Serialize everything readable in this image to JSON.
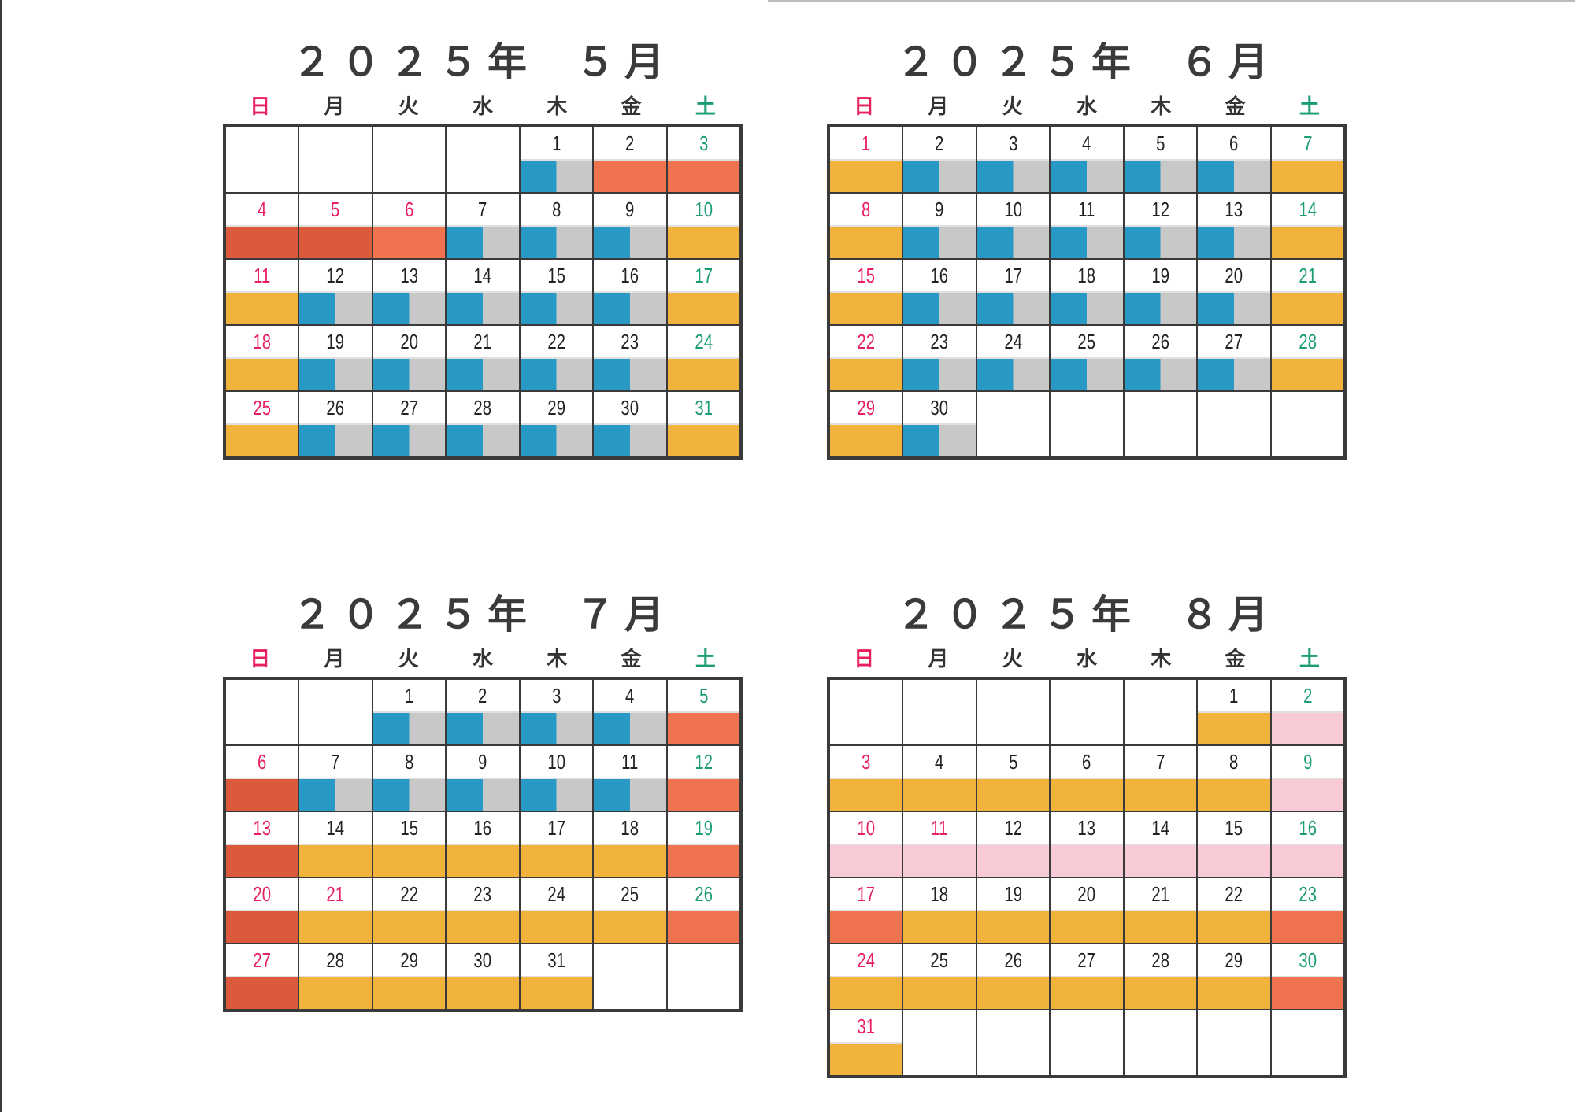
{
  "weekday_labels": [
    "日",
    "月",
    "火",
    "水",
    "木",
    "金",
    "土"
  ],
  "calendars": [
    {
      "year_label": "２０２５年",
      "month_label": "５月",
      "cells": [
        {
          "d": "",
          "c": "k",
          "b": "n"
        },
        {
          "d": "",
          "c": "k",
          "b": "n"
        },
        {
          "d": "",
          "c": "k",
          "b": "n"
        },
        {
          "d": "",
          "c": "k",
          "b": "n"
        },
        {
          "d": "1",
          "c": "k",
          "b": "t"
        },
        {
          "d": "2",
          "c": "k",
          "b": "r"
        },
        {
          "d": "3",
          "c": "g",
          "b": "r"
        },
        {
          "d": "4",
          "c": "r",
          "b": "dr"
        },
        {
          "d": "5",
          "c": "r",
          "b": "dr"
        },
        {
          "d": "6",
          "c": "r",
          "b": "r"
        },
        {
          "d": "7",
          "c": "k",
          "b": "t"
        },
        {
          "d": "8",
          "c": "k",
          "b": "t"
        },
        {
          "d": "9",
          "c": "k",
          "b": "t"
        },
        {
          "d": "10",
          "c": "g",
          "b": "o"
        },
        {
          "d": "11",
          "c": "r",
          "b": "o"
        },
        {
          "d": "12",
          "c": "k",
          "b": "t"
        },
        {
          "d": "13",
          "c": "k",
          "b": "t"
        },
        {
          "d": "14",
          "c": "k",
          "b": "t"
        },
        {
          "d": "15",
          "c": "k",
          "b": "t"
        },
        {
          "d": "16",
          "c": "k",
          "b": "t"
        },
        {
          "d": "17",
          "c": "g",
          "b": "o"
        },
        {
          "d": "18",
          "c": "r",
          "b": "o"
        },
        {
          "d": "19",
          "c": "k",
          "b": "t"
        },
        {
          "d": "20",
          "c": "k",
          "b": "t"
        },
        {
          "d": "21",
          "c": "k",
          "b": "t"
        },
        {
          "d": "22",
          "c": "k",
          "b": "t"
        },
        {
          "d": "23",
          "c": "k",
          "b": "t"
        },
        {
          "d": "24",
          "c": "g",
          "b": "o"
        },
        {
          "d": "25",
          "c": "r",
          "b": "o"
        },
        {
          "d": "26",
          "c": "k",
          "b": "t"
        },
        {
          "d": "27",
          "c": "k",
          "b": "t"
        },
        {
          "d": "28",
          "c": "k",
          "b": "t"
        },
        {
          "d": "29",
          "c": "k",
          "b": "t"
        },
        {
          "d": "30",
          "c": "k",
          "b": "t"
        },
        {
          "d": "31",
          "c": "g",
          "b": "o"
        }
      ]
    },
    {
      "year_label": "２０２５年",
      "month_label": "６月",
      "cells": [
        {
          "d": "1",
          "c": "r",
          "b": "o"
        },
        {
          "d": "2",
          "c": "k",
          "b": "t"
        },
        {
          "d": "3",
          "c": "k",
          "b": "t"
        },
        {
          "d": "4",
          "c": "k",
          "b": "t"
        },
        {
          "d": "5",
          "c": "k",
          "b": "t"
        },
        {
          "d": "6",
          "c": "k",
          "b": "t"
        },
        {
          "d": "7",
          "c": "g",
          "b": "o"
        },
        {
          "d": "8",
          "c": "r",
          "b": "o"
        },
        {
          "d": "9",
          "c": "k",
          "b": "t"
        },
        {
          "d": "10",
          "c": "k",
          "b": "t"
        },
        {
          "d": "11",
          "c": "k",
          "b": "t"
        },
        {
          "d": "12",
          "c": "k",
          "b": "t"
        },
        {
          "d": "13",
          "c": "k",
          "b": "t"
        },
        {
          "d": "14",
          "c": "g",
          "b": "o"
        },
        {
          "d": "15",
          "c": "r",
          "b": "o"
        },
        {
          "d": "16",
          "c": "k",
          "b": "t"
        },
        {
          "d": "17",
          "c": "k",
          "b": "t"
        },
        {
          "d": "18",
          "c": "k",
          "b": "t"
        },
        {
          "d": "19",
          "c": "k",
          "b": "t"
        },
        {
          "d": "20",
          "c": "k",
          "b": "t"
        },
        {
          "d": "21",
          "c": "g",
          "b": "o"
        },
        {
          "d": "22",
          "c": "r",
          "b": "o"
        },
        {
          "d": "23",
          "c": "k",
          "b": "t"
        },
        {
          "d": "24",
          "c": "k",
          "b": "t"
        },
        {
          "d": "25",
          "c": "k",
          "b": "t"
        },
        {
          "d": "26",
          "c": "k",
          "b": "t"
        },
        {
          "d": "27",
          "c": "k",
          "b": "t"
        },
        {
          "d": "28",
          "c": "g",
          "b": "o"
        },
        {
          "d": "29",
          "c": "r",
          "b": "o"
        },
        {
          "d": "30",
          "c": "k",
          "b": "t"
        },
        {
          "d": "",
          "c": "k",
          "b": "n"
        },
        {
          "d": "",
          "c": "k",
          "b": "n"
        },
        {
          "d": "",
          "c": "k",
          "b": "n"
        },
        {
          "d": "",
          "c": "k",
          "b": "n"
        },
        {
          "d": "",
          "c": "k",
          "b": "n"
        }
      ]
    },
    {
      "year_label": "２０２５年",
      "month_label": "７月",
      "cells": [
        {
          "d": "",
          "c": "k",
          "b": "n"
        },
        {
          "d": "",
          "c": "k",
          "b": "n"
        },
        {
          "d": "1",
          "c": "k",
          "b": "t"
        },
        {
          "d": "2",
          "c": "k",
          "b": "t"
        },
        {
          "d": "3",
          "c": "k",
          "b": "t"
        },
        {
          "d": "4",
          "c": "k",
          "b": "t"
        },
        {
          "d": "5",
          "c": "g",
          "b": "r"
        },
        {
          "d": "6",
          "c": "r",
          "b": "dr"
        },
        {
          "d": "7",
          "c": "k",
          "b": "t"
        },
        {
          "d": "8",
          "c": "k",
          "b": "t"
        },
        {
          "d": "9",
          "c": "k",
          "b": "t"
        },
        {
          "d": "10",
          "c": "k",
          "b": "t"
        },
        {
          "d": "11",
          "c": "k",
          "b": "t"
        },
        {
          "d": "12",
          "c": "g",
          "b": "r"
        },
        {
          "d": "13",
          "c": "r",
          "b": "dr"
        },
        {
          "d": "14",
          "c": "k",
          "b": "o"
        },
        {
          "d": "15",
          "c": "k",
          "b": "o"
        },
        {
          "d": "16",
          "c": "k",
          "b": "o"
        },
        {
          "d": "17",
          "c": "k",
          "b": "o"
        },
        {
          "d": "18",
          "c": "k",
          "b": "o"
        },
        {
          "d": "19",
          "c": "g",
          "b": "r"
        },
        {
          "d": "20",
          "c": "r",
          "b": "dr"
        },
        {
          "d": "21",
          "c": "r",
          "b": "o"
        },
        {
          "d": "22",
          "c": "k",
          "b": "o"
        },
        {
          "d": "23",
          "c": "k",
          "b": "o"
        },
        {
          "d": "24",
          "c": "k",
          "b": "o"
        },
        {
          "d": "25",
          "c": "k",
          "b": "o"
        },
        {
          "d": "26",
          "c": "g",
          "b": "r"
        },
        {
          "d": "27",
          "c": "r",
          "b": "dr"
        },
        {
          "d": "28",
          "c": "k",
          "b": "o"
        },
        {
          "d": "29",
          "c": "k",
          "b": "o"
        },
        {
          "d": "30",
          "c": "k",
          "b": "o"
        },
        {
          "d": "31",
          "c": "k",
          "b": "o"
        },
        {
          "d": "",
          "c": "k",
          "b": "n"
        },
        {
          "d": "",
          "c": "k",
          "b": "n"
        }
      ]
    },
    {
      "year_label": "２０２５年",
      "month_label": "８月",
      "cells": [
        {
          "d": "",
          "c": "k",
          "b": "n"
        },
        {
          "d": "",
          "c": "k",
          "b": "n"
        },
        {
          "d": "",
          "c": "k",
          "b": "n"
        },
        {
          "d": "",
          "c": "k",
          "b": "n"
        },
        {
          "d": "",
          "c": "k",
          "b": "n"
        },
        {
          "d": "1",
          "c": "k",
          "b": "o"
        },
        {
          "d": "2",
          "c": "g",
          "b": "p"
        },
        {
          "d": "3",
          "c": "r",
          "b": "o"
        },
        {
          "d": "4",
          "c": "k",
          "b": "o"
        },
        {
          "d": "5",
          "c": "k",
          "b": "o"
        },
        {
          "d": "6",
          "c": "k",
          "b": "o"
        },
        {
          "d": "7",
          "c": "k",
          "b": "o"
        },
        {
          "d": "8",
          "c": "k",
          "b": "o"
        },
        {
          "d": "9",
          "c": "g",
          "b": "p"
        },
        {
          "d": "10",
          "c": "r",
          "b": "p"
        },
        {
          "d": "11",
          "c": "r",
          "b": "p"
        },
        {
          "d": "12",
          "c": "k",
          "b": "p"
        },
        {
          "d": "13",
          "c": "k",
          "b": "p"
        },
        {
          "d": "14",
          "c": "k",
          "b": "p"
        },
        {
          "d": "15",
          "c": "k",
          "b": "p"
        },
        {
          "d": "16",
          "c": "g",
          "b": "p"
        },
        {
          "d": "17",
          "c": "r",
          "b": "r"
        },
        {
          "d": "18",
          "c": "k",
          "b": "o"
        },
        {
          "d": "19",
          "c": "k",
          "b": "o"
        },
        {
          "d": "20",
          "c": "k",
          "b": "o"
        },
        {
          "d": "21",
          "c": "k",
          "b": "o"
        },
        {
          "d": "22",
          "c": "k",
          "b": "o"
        },
        {
          "d": "23",
          "c": "g",
          "b": "r"
        },
        {
          "d": "24",
          "c": "r",
          "b": "o"
        },
        {
          "d": "25",
          "c": "k",
          "b": "o"
        },
        {
          "d": "26",
          "c": "k",
          "b": "o"
        },
        {
          "d": "27",
          "c": "k",
          "b": "o"
        },
        {
          "d": "28",
          "c": "k",
          "b": "o"
        },
        {
          "d": "29",
          "c": "k",
          "b": "o"
        },
        {
          "d": "30",
          "c": "g",
          "b": "r"
        },
        {
          "d": "31",
          "c": "r",
          "b": "o"
        },
        {
          "d": "",
          "c": "k",
          "b": "n"
        },
        {
          "d": "",
          "c": "k",
          "b": "n"
        },
        {
          "d": "",
          "c": "k",
          "b": "n"
        },
        {
          "d": "",
          "c": "k",
          "b": "n"
        },
        {
          "d": "",
          "c": "k",
          "b": "n"
        },
        {
          "d": "",
          "c": "k",
          "b": "n"
        }
      ]
    }
  ]
}
